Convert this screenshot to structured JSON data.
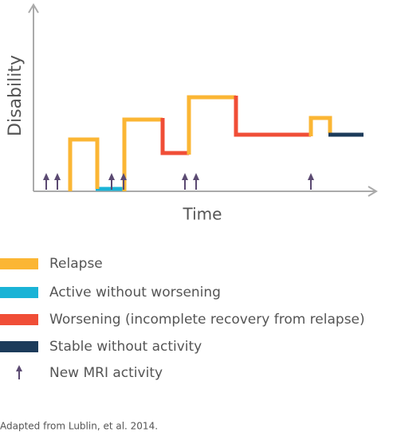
{
  "diagram": {
    "y_axis_label": "Disability",
    "x_axis_label": "Time"
  },
  "legend": [
    "Relapse",
    "Active without worsening",
    "Worsening (incomplete recovery from relapse)",
    "Stable without activity",
    "New MRI activity"
  ],
  "footnote": "Adapted from Lublin, et al. 2014."
}
